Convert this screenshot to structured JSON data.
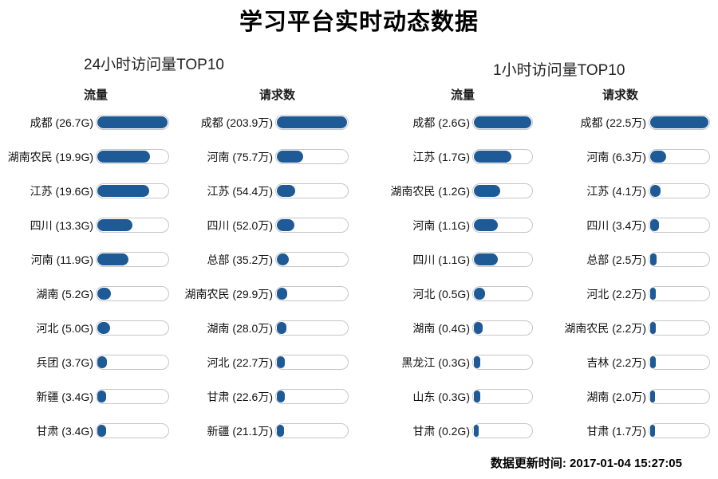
{
  "page_title": "学习平台实时动态数据",
  "colors": {
    "bar_fill": "#1d5a96",
    "track_border": "#c6c6c6",
    "background": "#ffffff"
  },
  "sections": [
    {
      "title": "24小时访问量TOP10",
      "columns": [
        {
          "header": "流量",
          "max": 26.7,
          "rows": [
            {
              "label": "成都 (26.7G)",
              "name": "成都",
              "value": 26.7
            },
            {
              "label": "湖南农民 (19.9G)",
              "name": "湖南农民",
              "value": 19.9
            },
            {
              "label": "江苏 (19.6G)",
              "name": "江苏",
              "value": 19.6
            },
            {
              "label": "四川 (13.3G)",
              "name": "四川",
              "value": 13.3
            },
            {
              "label": "河南 (11.9G)",
              "name": "河南",
              "value": 11.9
            },
            {
              "label": "湖南 (5.2G)",
              "name": "湖南",
              "value": 5.2
            },
            {
              "label": "河北 (5.0G)",
              "name": "河北",
              "value": 5.0
            },
            {
              "label": "兵团 (3.7G)",
              "name": "兵团",
              "value": 3.7
            },
            {
              "label": "新疆 (3.4G)",
              "name": "新疆",
              "value": 3.4
            },
            {
              "label": "甘肃 (3.4G)",
              "name": "甘肃",
              "value": 3.4
            }
          ]
        },
        {
          "header": "请求数",
          "max": 203.9,
          "rows": [
            {
              "label": "成都 (203.9万)",
              "name": "成都",
              "value": 203.9
            },
            {
              "label": "河南 (75.7万)",
              "name": "河南",
              "value": 75.7
            },
            {
              "label": "江苏 (54.4万)",
              "name": "江苏",
              "value": 54.4
            },
            {
              "label": "四川 (52.0万)",
              "name": "四川",
              "value": 52.0
            },
            {
              "label": "总部 (35.2万)",
              "name": "总部",
              "value": 35.2
            },
            {
              "label": "湖南农民 (29.9万)",
              "name": "湖南农民",
              "value": 29.9
            },
            {
              "label": "湖南 (28.0万)",
              "name": "湖南",
              "value": 28.0
            },
            {
              "label": "河北 (22.7万)",
              "name": "河北",
              "value": 22.7
            },
            {
              "label": "甘肃 (22.6万)",
              "name": "甘肃",
              "value": 22.6
            },
            {
              "label": "新疆 (21.1万)",
              "name": "新疆",
              "value": 21.1
            }
          ]
        }
      ]
    },
    {
      "title": "1小时访问量TOP10",
      "columns": [
        {
          "header": "流量",
          "max": 2.6,
          "rows": [
            {
              "label": "成都 (2.6G)",
              "name": "成都",
              "value": 2.6
            },
            {
              "label": "江苏 (1.7G)",
              "name": "江苏",
              "value": 1.7
            },
            {
              "label": "湖南农民 (1.2G)",
              "name": "湖南农民",
              "value": 1.2
            },
            {
              "label": "河南 (1.1G)",
              "name": "河南",
              "value": 1.1
            },
            {
              "label": "四川 (1.1G)",
              "name": "四川",
              "value": 1.1
            },
            {
              "label": "河北 (0.5G)",
              "name": "河北",
              "value": 0.5
            },
            {
              "label": "湖南 (0.4G)",
              "name": "湖南",
              "value": 0.4
            },
            {
              "label": "黑龙江 (0.3G)",
              "name": "黑龙江",
              "value": 0.3
            },
            {
              "label": "山东 (0.3G)",
              "name": "山东",
              "value": 0.3
            },
            {
              "label": "甘肃 (0.2G)",
              "name": "甘肃",
              "value": 0.2
            }
          ]
        },
        {
          "header": "请求数",
          "max": 22.5,
          "rows": [
            {
              "label": "成都 (22.5万)",
              "name": "成都",
              "value": 22.5
            },
            {
              "label": "河南 (6.3万)",
              "name": "河南",
              "value": 6.3
            },
            {
              "label": "江苏 (4.1万)",
              "name": "江苏",
              "value": 4.1
            },
            {
              "label": "四川 (3.4万)",
              "name": "四川",
              "value": 3.4
            },
            {
              "label": "总部 (2.5万)",
              "name": "总部",
              "value": 2.5
            },
            {
              "label": "河北 (2.2万)",
              "name": "河北",
              "value": 2.2
            },
            {
              "label": "湖南农民 (2.2万)",
              "name": "湖南农民",
              "value": 2.2
            },
            {
              "label": "吉林 (2.2万)",
              "name": "吉林",
              "value": 2.2
            },
            {
              "label": "湖南 (2.0万)",
              "name": "湖南",
              "value": 2.0
            },
            {
              "label": "甘肃 (1.7万)",
              "name": "甘肃",
              "value": 1.7
            }
          ]
        }
      ]
    }
  ],
  "footer": {
    "text": "数据更新时间: 2017-01-04 15:27:05"
  },
  "chart_data": [
    {
      "type": "bar",
      "title": "24小时访问量TOP10 - 流量",
      "orientation": "horizontal",
      "unit": "G",
      "categories": [
        "成都",
        "湖南农民",
        "江苏",
        "四川",
        "河南",
        "湖南",
        "河北",
        "兵团",
        "新疆",
        "甘肃"
      ],
      "values": [
        26.7,
        19.9,
        19.6,
        13.3,
        11.9,
        5.2,
        5.0,
        3.7,
        3.4,
        3.4
      ],
      "xlim": [
        0,
        26.7
      ]
    },
    {
      "type": "bar",
      "title": "24小时访问量TOP10 - 请求数",
      "orientation": "horizontal",
      "unit": "万",
      "categories": [
        "成都",
        "河南",
        "江苏",
        "四川",
        "总部",
        "湖南农民",
        "湖南",
        "河北",
        "甘肃",
        "新疆"
      ],
      "values": [
        203.9,
        75.7,
        54.4,
        52.0,
        35.2,
        29.9,
        28.0,
        22.7,
        22.6,
        21.1
      ],
      "xlim": [
        0,
        203.9
      ]
    },
    {
      "type": "bar",
      "title": "1小时访问量TOP10 - 流量",
      "orientation": "horizontal",
      "unit": "G",
      "categories": [
        "成都",
        "江苏",
        "湖南农民",
        "河南",
        "四川",
        "河北",
        "湖南",
        "黑龙江",
        "山东",
        "甘肃"
      ],
      "values": [
        2.6,
        1.7,
        1.2,
        1.1,
        1.1,
        0.5,
        0.4,
        0.3,
        0.3,
        0.2
      ],
      "xlim": [
        0,
        2.6
      ]
    },
    {
      "type": "bar",
      "title": "1小时访问量TOP10 - 请求数",
      "orientation": "horizontal",
      "unit": "万",
      "categories": [
        "成都",
        "河南",
        "江苏",
        "四川",
        "总部",
        "河北",
        "湖南农民",
        "吉林",
        "湖南",
        "甘肃"
      ],
      "values": [
        22.5,
        6.3,
        4.1,
        3.4,
        2.5,
        2.2,
        2.2,
        2.2,
        2.0,
        1.7
      ],
      "xlim": [
        0,
        22.5
      ]
    }
  ]
}
